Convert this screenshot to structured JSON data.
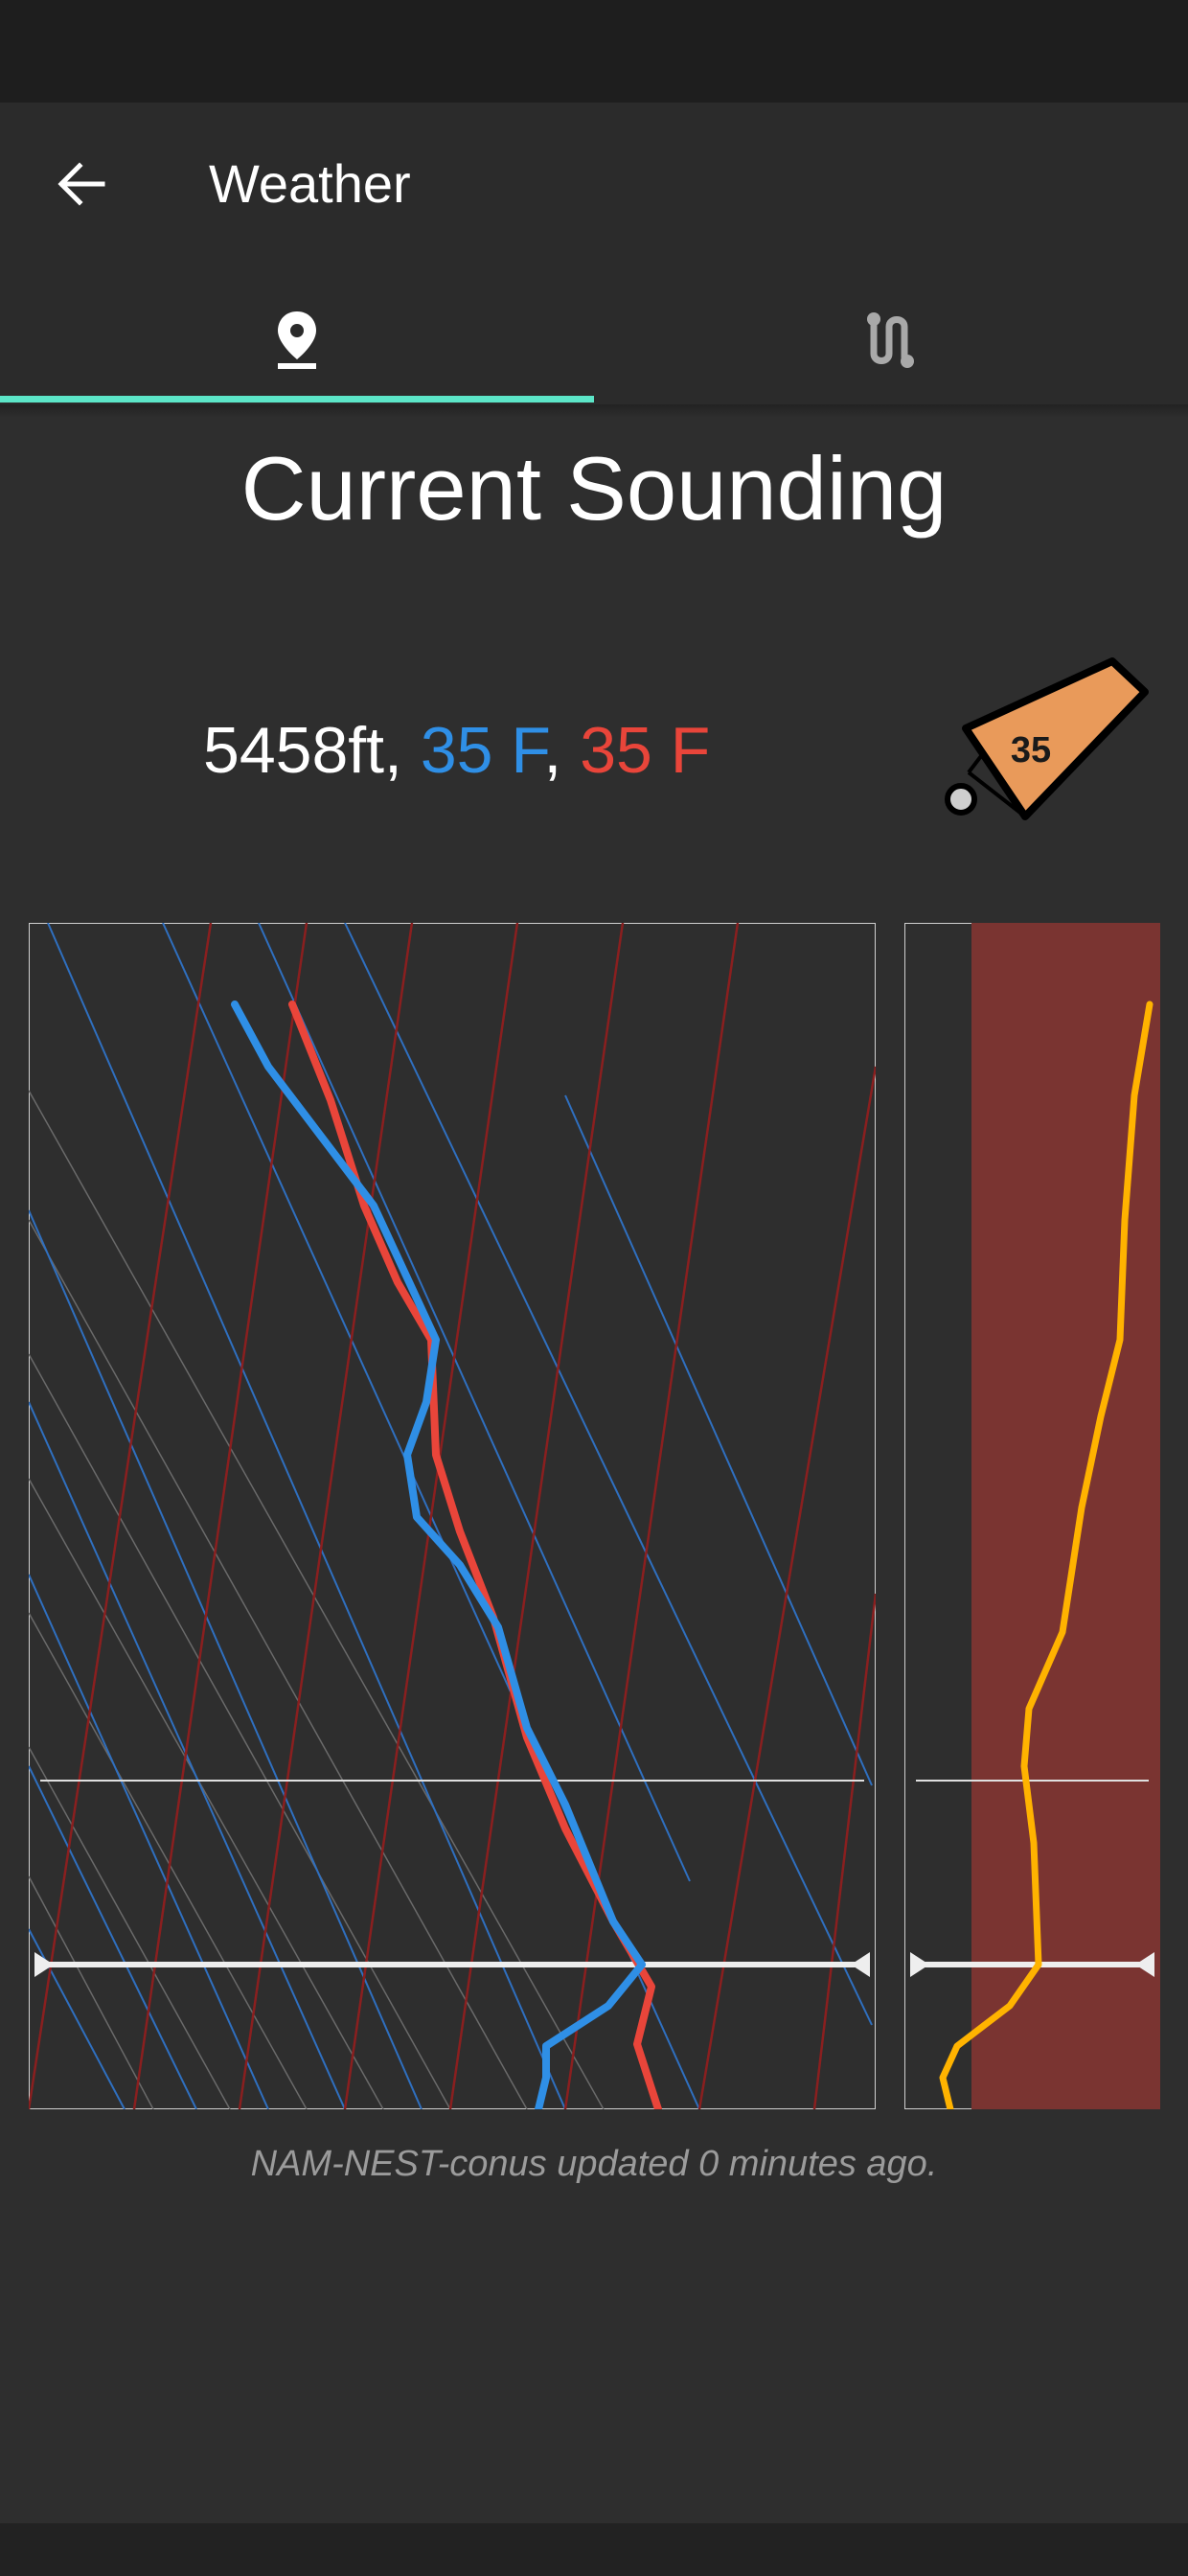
{
  "app": {
    "title": "Weather"
  },
  "tabs": [
    {
      "icon": "location-pin-icon",
      "selected": true
    },
    {
      "icon": "route-icon",
      "selected": false
    }
  ],
  "page": {
    "title": "Current Sounding"
  },
  "reading": {
    "altitude": "5458ft,",
    "dewpoint": "35 F",
    "separator": ",",
    "temperature": "35 F"
  },
  "wind": {
    "speed": "35"
  },
  "footer": {
    "note": "NAM-NEST-conus updated  0  minutes ago."
  },
  "colors": {
    "accent": "#5ce6c8",
    "dewpoint": "#2f8fe6",
    "temperature": "#e9453a",
    "humidity_line": "#ffb300",
    "wind_sock": "#e99a5a",
    "humidity_band": "#7a3431"
  }
}
